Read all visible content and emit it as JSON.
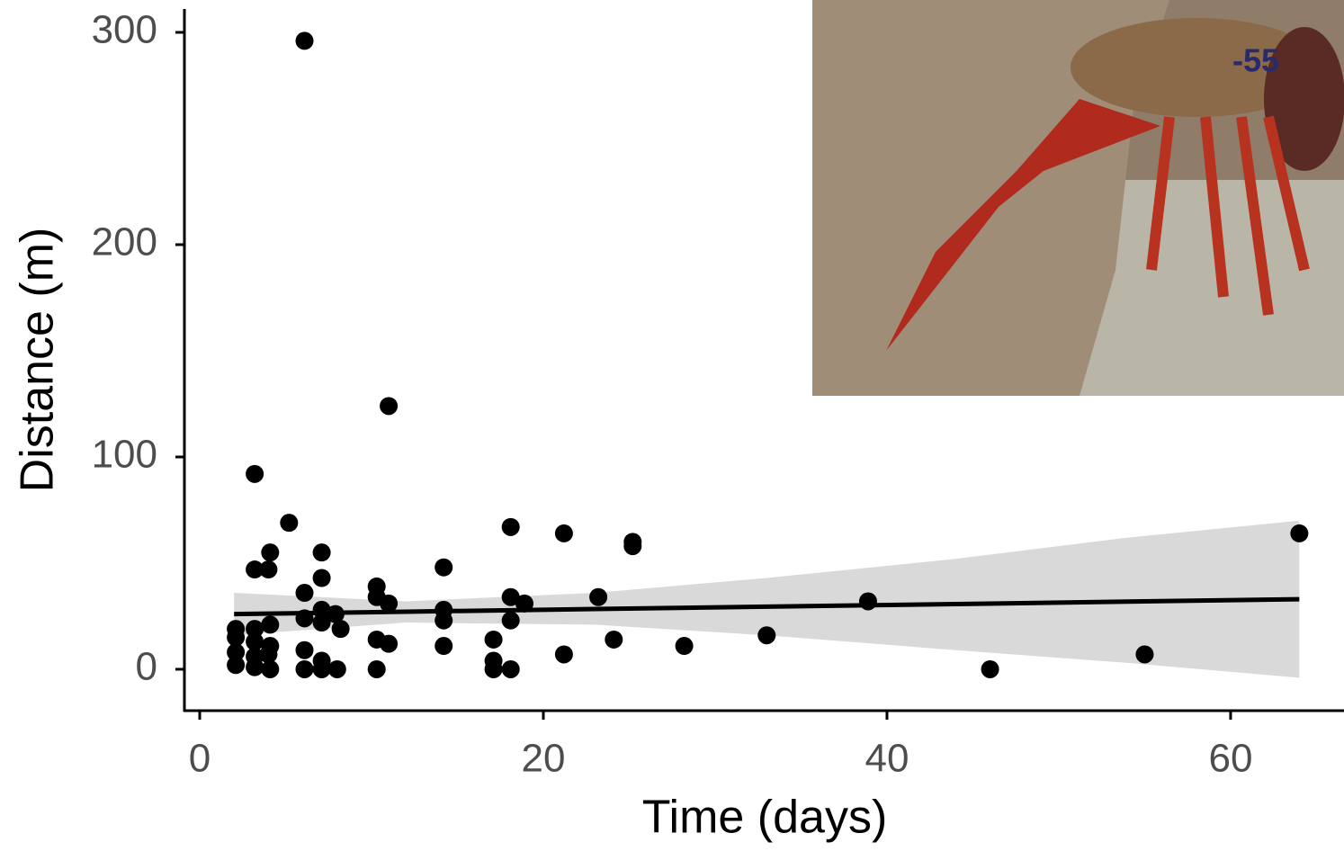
{
  "chart_data": {
    "type": "scatter",
    "x_label": "Time (days)",
    "y_label": "Distance (m)",
    "xlim": [
      -0.89,
      66.6
    ],
    "ylim": [
      -19.5,
      311
    ],
    "xticks": [
      0,
      20,
      40,
      60
    ],
    "yticks": [
      0,
      100,
      200,
      300
    ],
    "color": "#000000",
    "x": [
      6.1,
      11,
      3.2,
      5.2,
      18.1,
      21.2,
      25.2,
      25.2,
      64,
      4.1,
      7.1,
      3.2,
      4,
      14.2,
      7.1,
      10.3,
      6.1,
      23.2,
      18.1,
      18.9,
      38.9,
      10.3,
      11,
      7.1,
      14.2,
      7.9,
      6.1,
      18.1,
      14.2,
      7.1,
      2.1,
      3.2,
      4.1,
      8.2,
      33,
      2.1,
      17.1,
      24.1,
      10.3,
      11,
      14.2,
      3.2,
      4.1,
      28.2,
      6.1,
      2.1,
      55,
      21.2,
      4,
      3.2,
      7.1,
      17.1,
      2.1,
      3.2,
      4.1,
      6.1,
      7.1,
      8,
      10.3,
      17.1,
      18.1,
      46
    ],
    "values": [
      296,
      124,
      92,
      69,
      67,
      64,
      60,
      58,
      64,
      55,
      55,
      47,
      47,
      48,
      43,
      39,
      36,
      34,
      34,
      31,
      32,
      34,
      31,
      28,
      28,
      26,
      24,
      23,
      23,
      22,
      19,
      19,
      21,
      19,
      16,
      15,
      14,
      14,
      14,
      12,
      11,
      13,
      11,
      11,
      9,
      8,
      7,
      7,
      7,
      6,
      4,
      4,
      2,
      1,
      0,
      0,
      0,
      0,
      0,
      0,
      0,
      0
    ],
    "fit": {
      "color": "#000000",
      "band_color": "#d9d9d9",
      "x": [
        2,
        12,
        23,
        33,
        44,
        54,
        64
      ],
      "y": [
        26,
        27.1,
        28.4,
        29.5,
        30.7,
        31.9,
        33
      ],
      "lower": [
        16,
        22,
        21,
        16,
        9,
        3,
        -4
      ],
      "upper": [
        36,
        32,
        36,
        43,
        52,
        62,
        70
      ]
    }
  }
}
